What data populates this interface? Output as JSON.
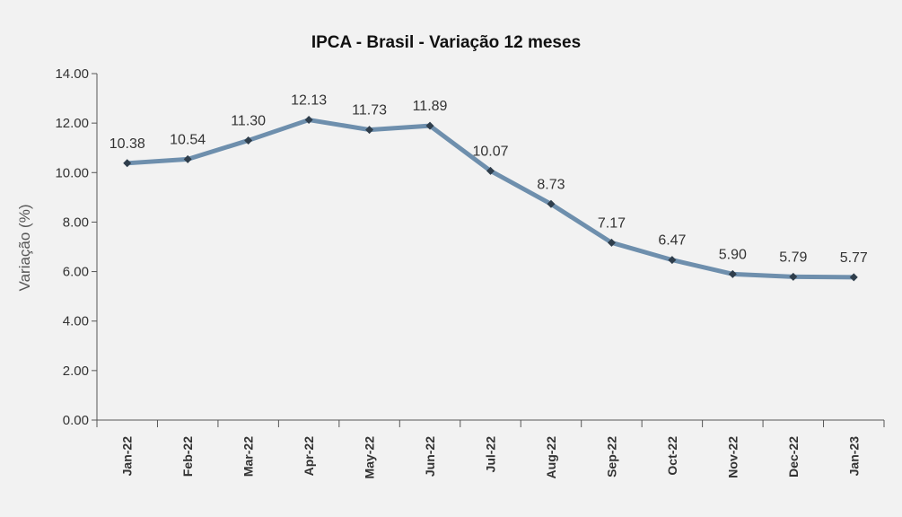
{
  "chart_data": {
    "type": "line",
    "title": "IPCA - Brasil - Variação 12 meses",
    "xlabel": "",
    "ylabel": "Variação (%)",
    "ylim": [
      0,
      14
    ],
    "yticks": [
      "0.00",
      "2.00",
      "4.00",
      "6.00",
      "8.00",
      "10.00",
      "12.00",
      "14.00"
    ],
    "categories": [
      "Jan-22",
      "Feb-22",
      "Mar-22",
      "Apr-22",
      "May-22",
      "Jun-22",
      "Jul-22",
      "Aug-22",
      "Sep-22",
      "Oct-22",
      "Nov-22",
      "Dec-22",
      "Jan-23"
    ],
    "series": [
      {
        "values": [
          10.38,
          10.54,
          11.3,
          12.13,
          11.73,
          11.89,
          10.07,
          8.73,
          7.17,
          6.47,
          5.9,
          5.79,
          5.77
        ],
        "labels": [
          "10.38",
          "10.54",
          "11.30",
          "12.13",
          "11.73",
          "11.89",
          "10.07",
          "8.73",
          "7.17",
          "6.47",
          "5.90",
          "5.79",
          "5.77"
        ],
        "color": "#6e8fad",
        "marker_color": "#2f3e4c"
      }
    ],
    "grid": false,
    "legend": "none"
  }
}
